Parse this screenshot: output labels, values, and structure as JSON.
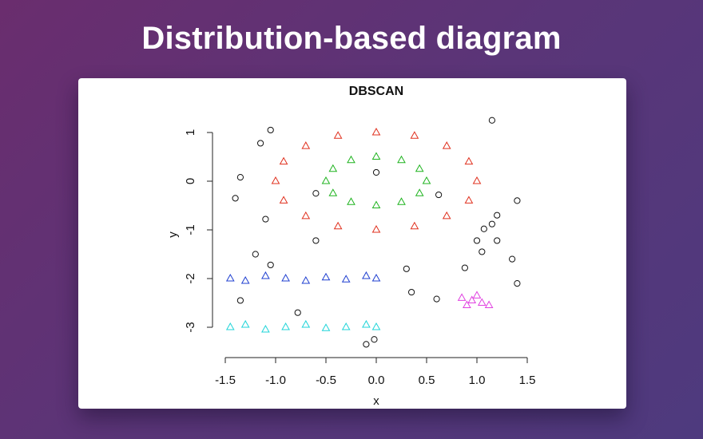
{
  "page": {
    "heading": "Distribution-based diagram"
  },
  "chart_data": {
    "type": "scatter",
    "title": "DBSCAN",
    "xlabel": "x",
    "ylabel": "y",
    "xlim": [
      -1.5,
      1.5
    ],
    "ylim": [
      -3.4,
      1.2
    ],
    "xticks": [
      -1.5,
      -1.0,
      -0.5,
      0.0,
      0.5,
      1.0,
      1.5
    ],
    "xtick_labels": [
      "-1.5",
      "-1.0",
      "-0.5",
      "0.0",
      "0.5",
      "1.0",
      "1.5"
    ],
    "yticks": [
      1,
      0,
      -1,
      -2,
      -3
    ],
    "ytick_labels": [
      "1",
      "0",
      "-1",
      "-2",
      "-3"
    ],
    "grid": false,
    "legend": "none",
    "series": [
      {
        "color": "#e0301e",
        "marker": "triangle",
        "values": [
          [
            1.0,
            0.0
          ],
          [
            0.92,
            0.4
          ],
          [
            0.7,
            0.72
          ],
          [
            0.38,
            0.93
          ],
          [
            0.0,
            1.0
          ],
          [
            -0.38,
            0.93
          ],
          [
            -0.7,
            0.72
          ],
          [
            -0.92,
            0.4
          ],
          [
            -1.0,
            0.0
          ],
          [
            -0.92,
            -0.4
          ],
          [
            -0.7,
            -0.72
          ],
          [
            -0.38,
            -0.93
          ],
          [
            0.0,
            -1.0
          ],
          [
            0.38,
            -0.93
          ],
          [
            0.7,
            -0.72
          ],
          [
            0.92,
            -0.4
          ]
        ]
      },
      {
        "color": "#1fb31f",
        "marker": "triangle",
        "values": [
          [
            0.5,
            0.0
          ],
          [
            0.43,
            0.25
          ],
          [
            0.25,
            0.43
          ],
          [
            0.0,
            0.5
          ],
          [
            -0.25,
            0.43
          ],
          [
            -0.43,
            0.25
          ],
          [
            -0.5,
            0.0
          ],
          [
            -0.43,
            -0.25
          ],
          [
            -0.25,
            -0.43
          ],
          [
            0.0,
            -0.5
          ],
          [
            0.25,
            -0.43
          ],
          [
            0.43,
            -0.25
          ]
        ]
      },
      {
        "color": "#1f3fd0",
        "marker": "triangle",
        "values": [
          [
            -1.45,
            -2.0
          ],
          [
            -1.3,
            -2.05
          ],
          [
            -1.1,
            -1.95
          ],
          [
            -0.9,
            -2.0
          ],
          [
            -0.7,
            -2.05
          ],
          [
            -0.5,
            -1.98
          ],
          [
            -0.3,
            -2.02
          ],
          [
            -0.1,
            -1.95
          ],
          [
            0.0,
            -2.0
          ]
        ]
      },
      {
        "color": "#1fd4d8",
        "marker": "triangle",
        "values": [
          [
            -1.45,
            -3.0
          ],
          [
            -1.3,
            -2.95
          ],
          [
            -1.1,
            -3.05
          ],
          [
            -0.9,
            -3.0
          ],
          [
            -0.7,
            -2.95
          ],
          [
            -0.5,
            -3.02
          ],
          [
            -0.3,
            -3.0
          ],
          [
            -0.1,
            -2.95
          ],
          [
            0.0,
            -3.0
          ]
        ]
      },
      {
        "color": "#e040e0",
        "marker": "triangle",
        "values": [
          [
            0.85,
            -2.4
          ],
          [
            0.95,
            -2.45
          ],
          [
            1.05,
            -2.5
          ],
          [
            1.12,
            -2.55
          ],
          [
            0.9,
            -2.55
          ],
          [
            1.0,
            -2.35
          ]
        ]
      },
      {
        "color": "#111111",
        "marker": "circle",
        "values": [
          [
            1.15,
            1.25
          ],
          [
            -1.05,
            1.05
          ],
          [
            -1.15,
            0.78
          ],
          [
            -1.35,
            0.08
          ],
          [
            -1.4,
            -0.35
          ],
          [
            -1.1,
            -0.78
          ],
          [
            -0.6,
            -1.22
          ],
          [
            1.4,
            -0.4
          ],
          [
            1.2,
            -0.7
          ],
          [
            1.15,
            -0.88
          ],
          [
            1.07,
            -0.98
          ],
          [
            1.0,
            -1.22
          ],
          [
            1.2,
            -1.22
          ],
          [
            1.05,
            -1.45
          ],
          [
            1.35,
            -1.6
          ],
          [
            0.88,
            -1.78
          ],
          [
            1.4,
            -2.1
          ],
          [
            -1.2,
            -1.5
          ],
          [
            -1.05,
            -1.72
          ],
          [
            -1.35,
            -2.45
          ],
          [
            0.3,
            -1.8
          ],
          [
            0.35,
            -2.28
          ],
          [
            0.6,
            -2.42
          ],
          [
            -0.78,
            -2.7
          ],
          [
            -0.1,
            -3.35
          ],
          [
            -0.02,
            -3.25
          ],
          [
            0.0,
            0.18
          ],
          [
            0.62,
            -0.28
          ],
          [
            -0.6,
            -0.25
          ]
        ]
      }
    ]
  }
}
